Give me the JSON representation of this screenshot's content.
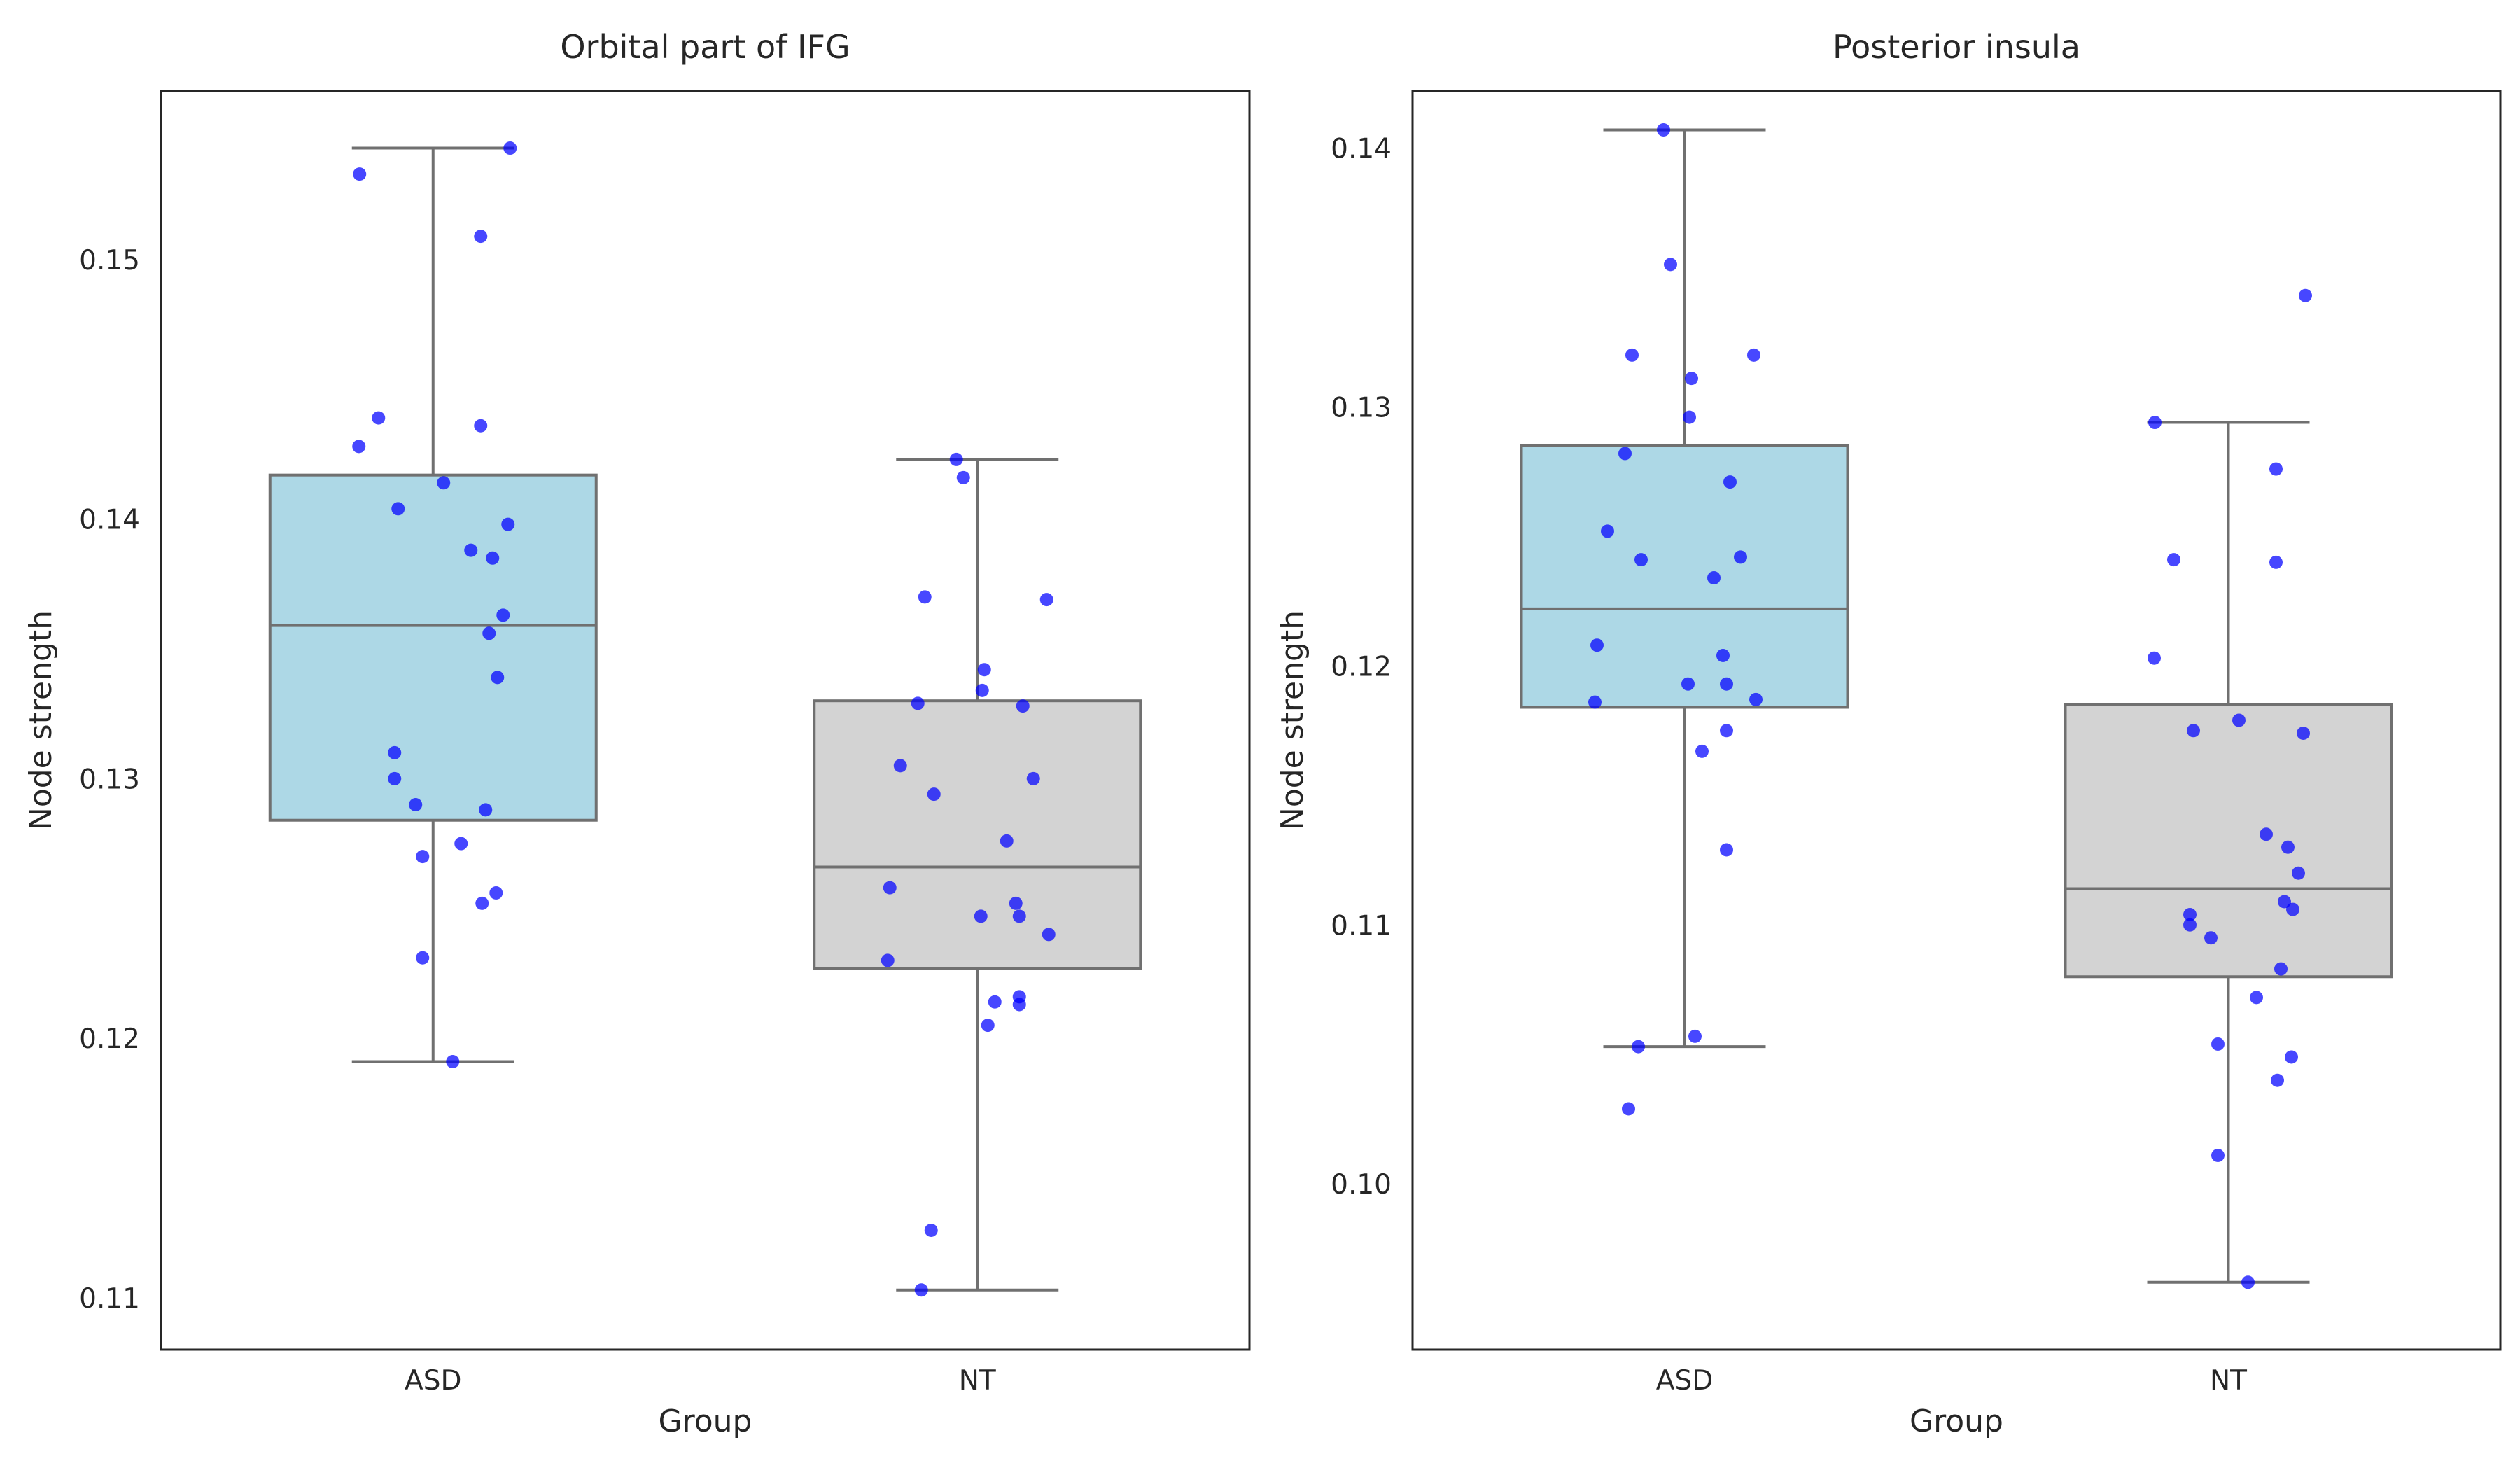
{
  "chart_data": [
    {
      "type": "box",
      "title": "Orbital part of IFG",
      "xlabel": "Group",
      "ylabel": "Node strength",
      "categories": [
        "ASD",
        "NT"
      ],
      "ylim": [
        0.108,
        0.1565
      ],
      "yticks": [
        0.11,
        0.12,
        0.13,
        0.14,
        0.15
      ],
      "ytick_labels": [
        "0.11",
        "0.12",
        "0.13",
        "0.14",
        "0.15"
      ],
      "grid": false,
      "colors": {
        "ASD": "#add8e6",
        "NT": "#d3d3d3",
        "points": "#0000ff",
        "lines": "#707070"
      },
      "boxes": [
        {
          "group": "ASD",
          "whisker_low": 0.1191,
          "q1": 0.1284,
          "median": 0.1359,
          "q3": 0.1417,
          "whisker_high": 0.1543
        },
        {
          "group": "NT",
          "whisker_low": 0.1103,
          "q1": 0.1227,
          "median": 0.1266,
          "q3": 0.133,
          "whisker_high": 0.1423
        }
      ],
      "points": [
        {
          "group": "ASD",
          "values": [
            0.1543,
            0.1533,
            0.1509,
            0.1439,
            0.1436,
            0.1428,
            0.1414,
            0.1404,
            0.1398,
            0.1388,
            0.1385,
            0.1363,
            0.1356,
            0.1339,
            0.131,
            0.13,
            0.129,
            0.1288,
            0.1275,
            0.127,
            0.1256,
            0.1252,
            0.1231,
            0.1191
          ]
        },
        {
          "group": "NT",
          "values": [
            0.1423,
            0.1416,
            0.137,
            0.1369,
            0.1342,
            0.1334,
            0.1329,
            0.1328,
            0.1305,
            0.13,
            0.1294,
            0.1276,
            0.1258,
            0.1252,
            0.1247,
            0.1247,
            0.124,
            0.123,
            0.1216,
            0.1214,
            0.1213,
            0.1205,
            0.1126,
            0.1103
          ]
        }
      ]
    },
    {
      "type": "box",
      "title": "Posterior insula",
      "xlabel": "Group",
      "ylabel": "Node strength",
      "categories": [
        "ASD",
        "NT"
      ],
      "ylim": [
        0.0936,
        0.1422
      ],
      "yticks": [
        0.1,
        0.11,
        0.12,
        0.13,
        0.14
      ],
      "ytick_labels": [
        "0.10",
        "0.11",
        "0.12",
        "0.13",
        "0.14"
      ],
      "grid": false,
      "colors": {
        "ASD": "#add8e6",
        "NT": "#d3d3d3",
        "points": "#0000ff",
        "lines": "#707070"
      },
      "boxes": [
        {
          "group": "ASD",
          "whisker_low": 0.1053,
          "q1": 0.1184,
          "median": 0.1222,
          "q3": 0.1285,
          "whisker_high": 0.1407
        },
        {
          "group": "NT",
          "whisker_low": 0.0962,
          "q1": 0.108,
          "median": 0.1114,
          "q3": 0.1185,
          "whisker_high": 0.1294
        }
      ],
      "points": [
        {
          "group": "ASD",
          "values": [
            0.1407,
            0.1355,
            0.132,
            0.132,
            0.1311,
            0.1296,
            0.1282,
            0.1271,
            0.1252,
            0.1242,
            0.1241,
            0.1234,
            0.1208,
            0.1204,
            0.1193,
            0.1193,
            0.1187,
            0.1186,
            0.1175,
            0.1167,
            0.1129,
            0.1057,
            0.1053,
            0.1029
          ]
        },
        {
          "group": "NT",
          "values": [
            0.1343,
            0.1294,
            0.1276,
            0.1241,
            0.124,
            0.1203,
            0.1179,
            0.1175,
            0.1174,
            0.1135,
            0.113,
            0.112,
            0.1109,
            0.1106,
            0.1104,
            0.11,
            0.1095,
            0.1083,
            0.1072,
            0.1054,
            0.1049,
            0.104,
            0.1011,
            0.0962
          ]
        }
      ]
    }
  ]
}
